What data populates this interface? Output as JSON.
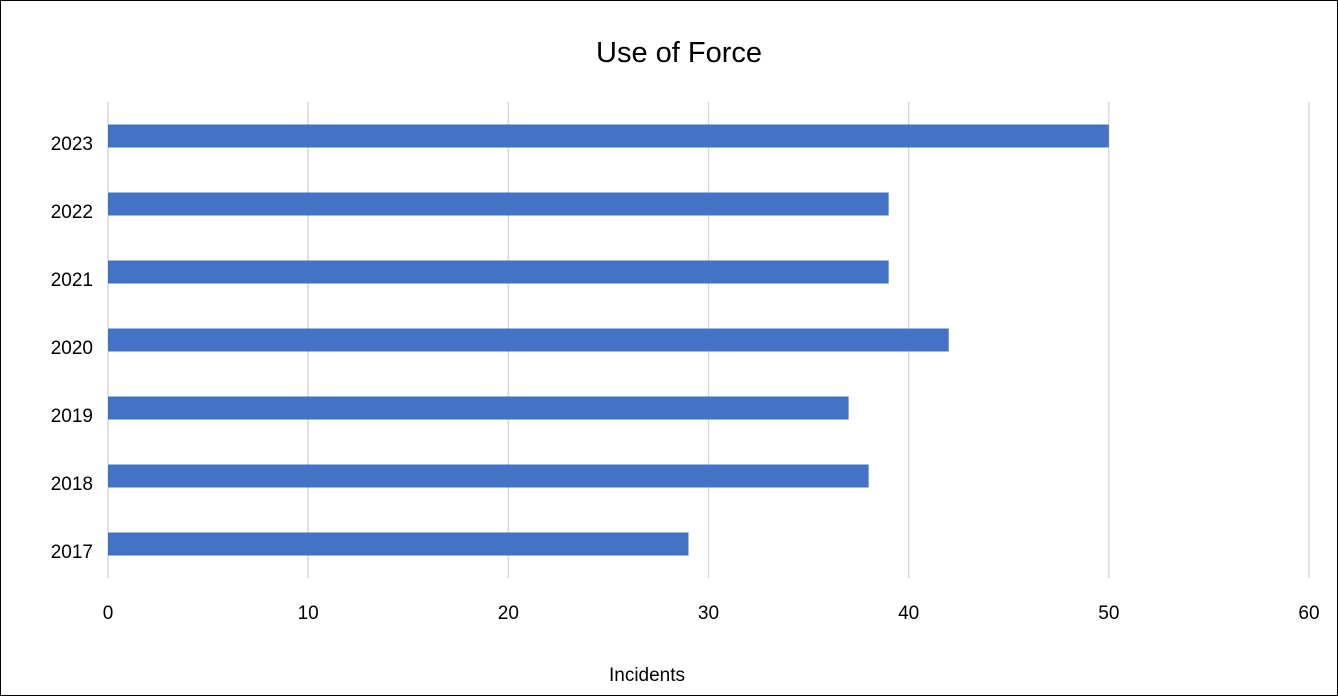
{
  "chart_data": {
    "type": "bar",
    "orientation": "horizontal",
    "title": "Use of Force",
    "xlabel": "Incidents",
    "ylabel": "",
    "categories": [
      "2017",
      "2018",
      "2019",
      "2020",
      "2021",
      "2022",
      "2023"
    ],
    "values": [
      29,
      38,
      37,
      42,
      39,
      39,
      50
    ],
    "xlim": [
      0,
      60
    ],
    "xticks": [
      0,
      10,
      20,
      30,
      40,
      50,
      60
    ],
    "grid": "vertical",
    "legend": "none",
    "bar_color": "#4472C4",
    "grid_color": "#D9D9D9"
  }
}
